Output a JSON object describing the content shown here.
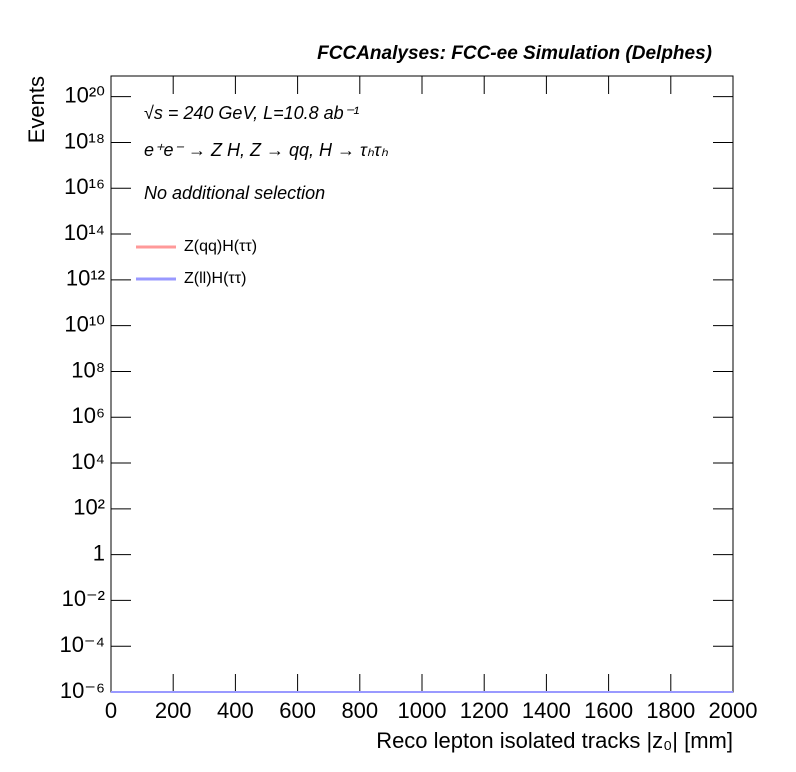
{
  "chart_data": {
    "type": "line",
    "title": "FCCAnalyses: FCC-ee Simulation (Delphes)",
    "annotations": [
      "√s = 240 GeV, L=10.8 ab⁻¹",
      "e⁺e⁻ → Z H, Z → qq, H → τₕτₕ",
      "No additional selection"
    ],
    "xlabel": "Reco lepton isolated tracks |z₀| [mm]",
    "ylabel": "Events",
    "x": [
      0,
      2000
    ],
    "series": [
      {
        "name": "Z(qq)H(ττ)",
        "color": "#ff9999",
        "values": [
          1e-06,
          1e-06
        ]
      },
      {
        "name": "Z(ll)H(ττ)",
        "color": "#9999ff",
        "values": [
          1e-06,
          1e-06
        ]
      }
    ],
    "xlim": [
      0,
      2000
    ],
    "xticks": [
      0,
      200,
      400,
      600,
      800,
      1000,
      1200,
      1400,
      1600,
      1800,
      2000
    ],
    "ylim": [
      1e-06,
      8e+20
    ],
    "yscale": "log",
    "yticks": [
      {
        "value": 1e-06,
        "label": "10⁻⁶"
      },
      {
        "value": 0.0001,
        "label": "10⁻⁴"
      },
      {
        "value": 0.01,
        "label": "10⁻²"
      },
      1,
      {
        "value": 100.0,
        "label": "10²"
      },
      {
        "value": 10000.0,
        "label": "10⁴"
      },
      {
        "value": 1000000.0,
        "label": "10⁶"
      },
      {
        "value": 100000000.0,
        "label": "10⁸"
      },
      {
        "value": 10000000000.0,
        "label": "10¹⁰"
      },
      {
        "value": 1000000000000.0,
        "label": "10¹²"
      },
      {
        "value": 100000000000000.0,
        "label": "10¹⁴"
      },
      {
        "value": 1e+16,
        "label": "10¹⁶"
      },
      {
        "value": 1e+18,
        "label": "10¹⁸"
      },
      {
        "value": 1e+20,
        "label": "10²⁰"
      }
    ],
    "grid": false,
    "legend": "upper left"
  }
}
